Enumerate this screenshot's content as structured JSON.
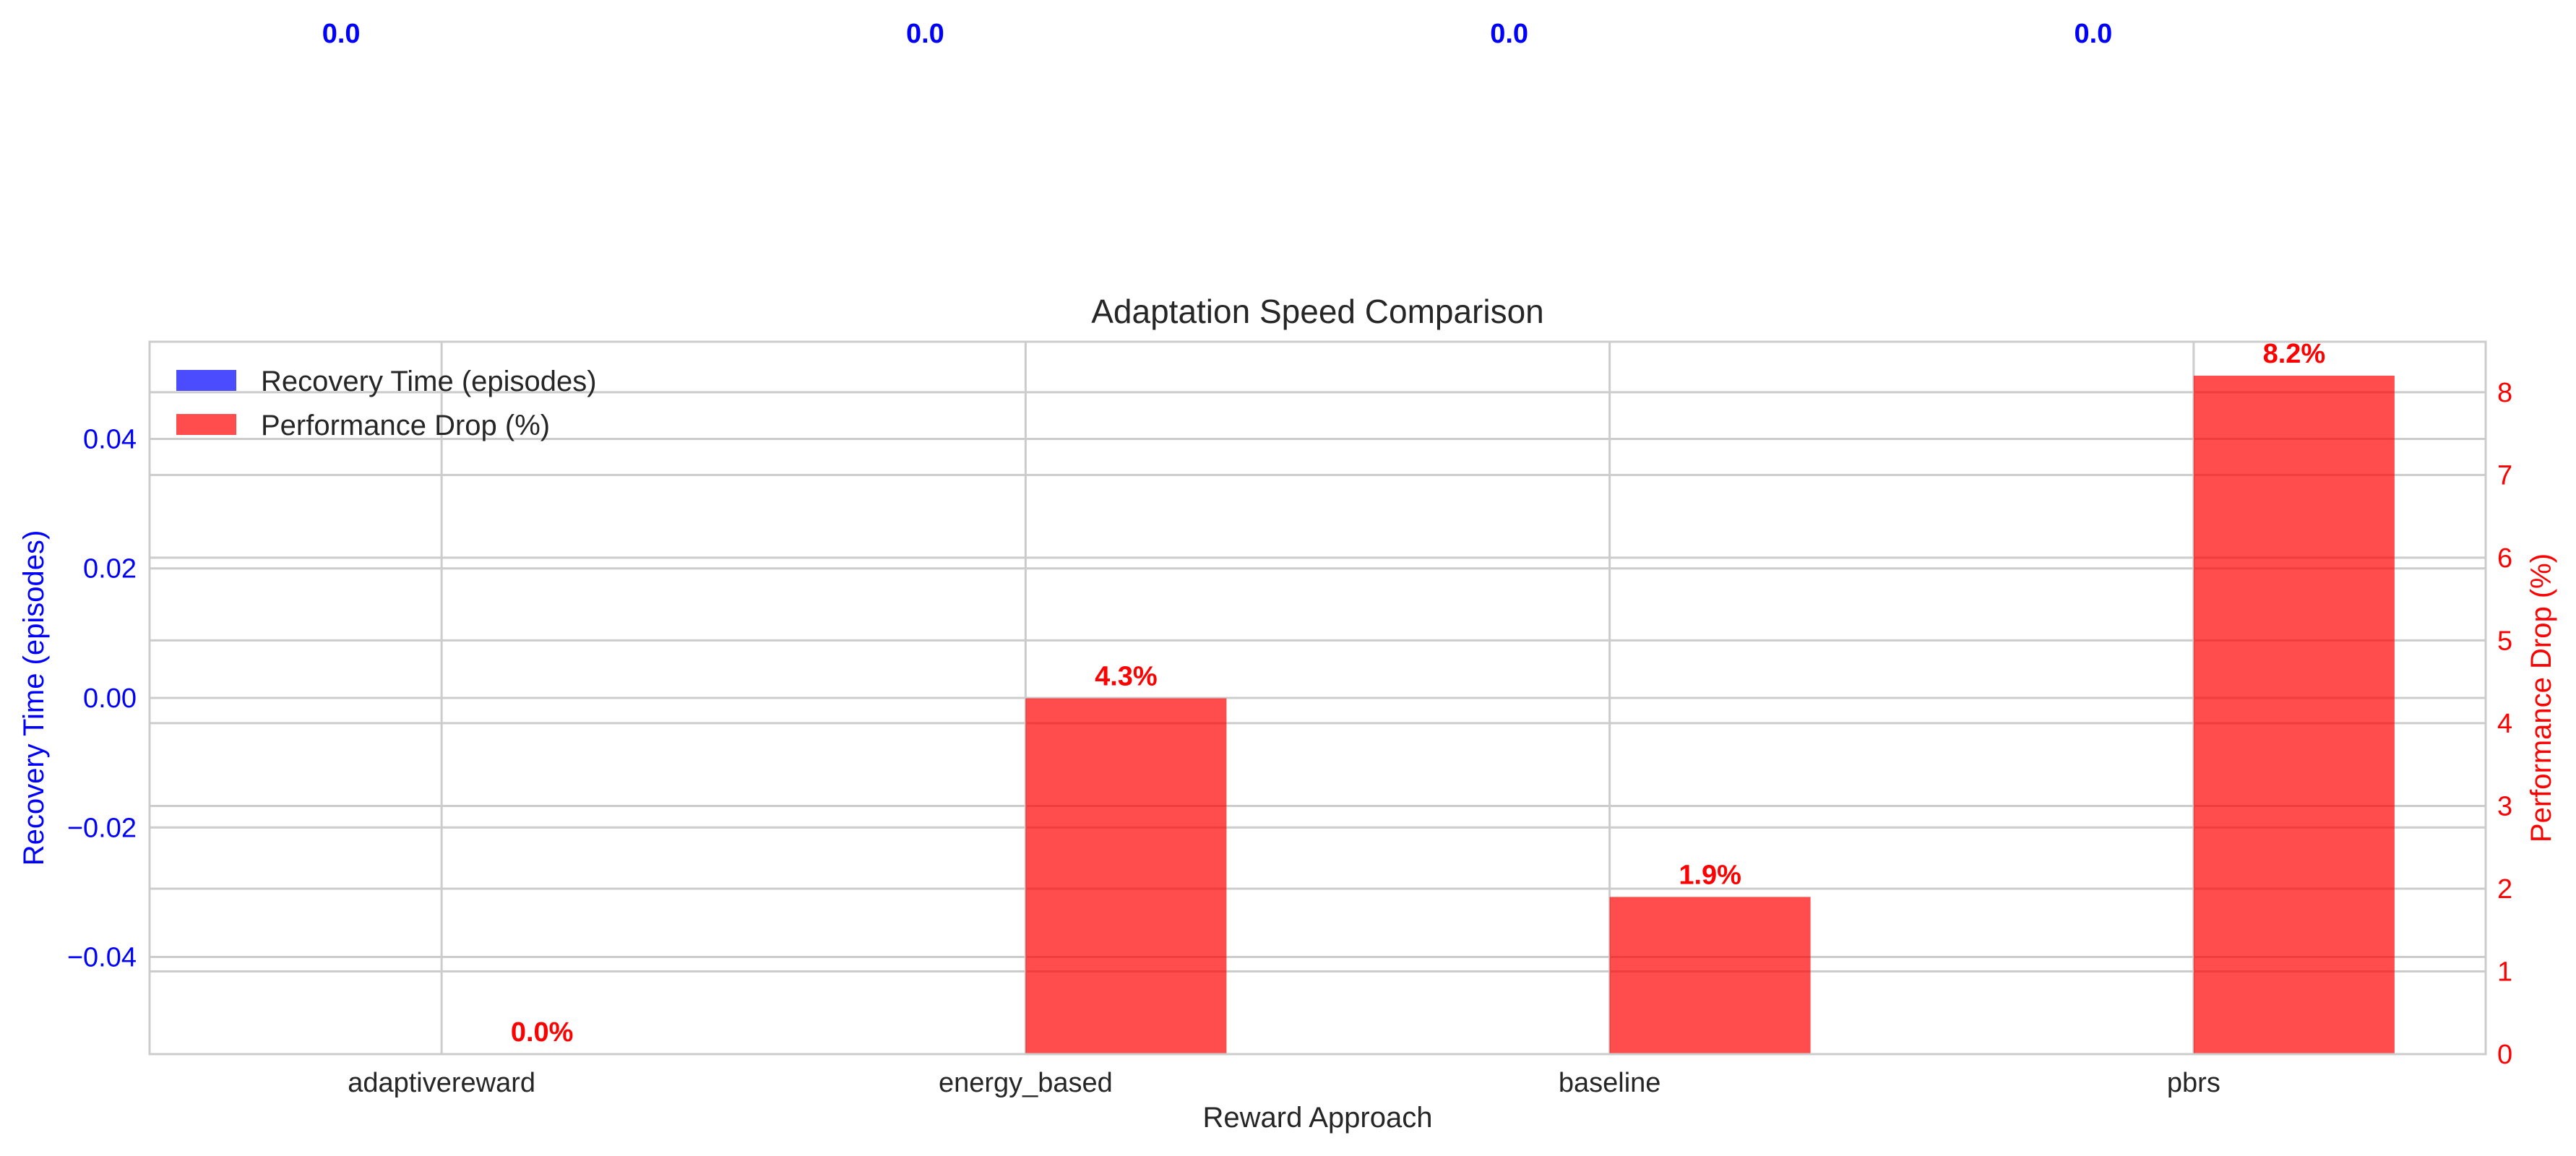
{
  "chart_data": {
    "type": "bar",
    "title": "Adaptation Speed Comparison",
    "xlabel": "Reward Approach",
    "categories": [
      "adaptivereward",
      "energy_based",
      "baseline",
      "pbrs"
    ],
    "series": [
      {
        "name": "Recovery Time (episodes)",
        "axis": "left",
        "color": "#0000ff",
        "values": [
          0.0,
          0.0,
          0.0,
          0.0
        ],
        "labels": [
          "0.0",
          "0.0",
          "0.0",
          "0.0"
        ]
      },
      {
        "name": "Performance Drop (%)",
        "axis": "right",
        "color": "#ff0000",
        "values": [
          0.0,
          4.3,
          1.9,
          8.2
        ],
        "labels": [
          "0.0%",
          "4.3%",
          "1.9%",
          "8.2%"
        ]
      }
    ],
    "y_left": {
      "label": "Recovery Time (episodes)",
      "color": "#0000ff",
      "ylim": [
        -0.055,
        0.055
      ],
      "ticks": [
        -0.04,
        -0.02,
        0.0,
        0.02,
        0.04
      ],
      "tick_labels": [
        "−0.04",
        "−0.02",
        "0.00",
        "0.02",
        "0.04"
      ]
    },
    "y_right": {
      "label": "Performance Drop (%)",
      "color": "#ff0000",
      "ylim": [
        0,
        8.61
      ],
      "ticks": [
        0,
        1,
        2,
        3,
        4,
        5,
        6,
        7,
        8
      ],
      "tick_labels": [
        "0",
        "1",
        "2",
        "3",
        "4",
        "5",
        "6",
        "7",
        "8"
      ]
    },
    "grid": true,
    "legend_position": "top-left"
  }
}
